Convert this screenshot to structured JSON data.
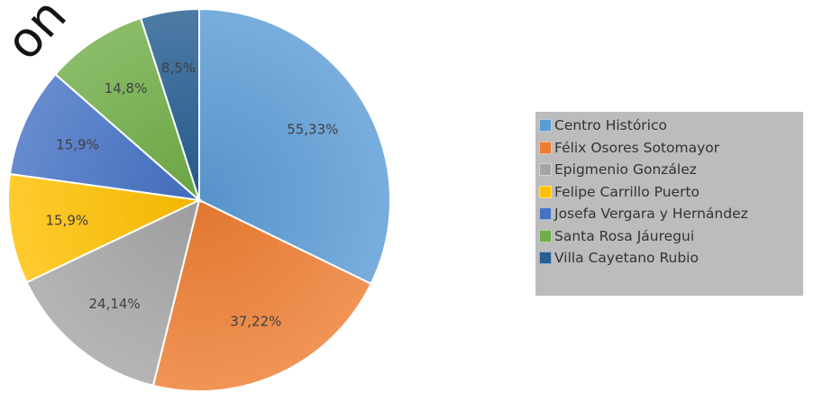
{
  "watermark": "on",
  "chart_data": {
    "type": "pie",
    "title": "",
    "categories": [
      "Centro Histórico",
      "Félix Osores Sotomayor",
      "Epigmenio González",
      "Felipe Carrillo Puerto",
      "Josefa Vergara y Hernández",
      "Santa Rosa Jáuregui",
      "Villa Cayetano Rubio"
    ],
    "labels": [
      "55,33%",
      "37,22%",
      "24,14%",
      "15,9%",
      "15,9%",
      "14,8%",
      "8,5%"
    ],
    "values": [
      55.33,
      37.22,
      24.14,
      15.9,
      15.9,
      14.8,
      8.5
    ],
    "colors": [
      "#5b9bd5",
      "#ed7d31",
      "#a5a5a5",
      "#ffc000",
      "#4472c4",
      "#70ad47",
      "#255e91"
    ],
    "start_direction": "top",
    "clockwise": true,
    "legend_position": "right"
  }
}
